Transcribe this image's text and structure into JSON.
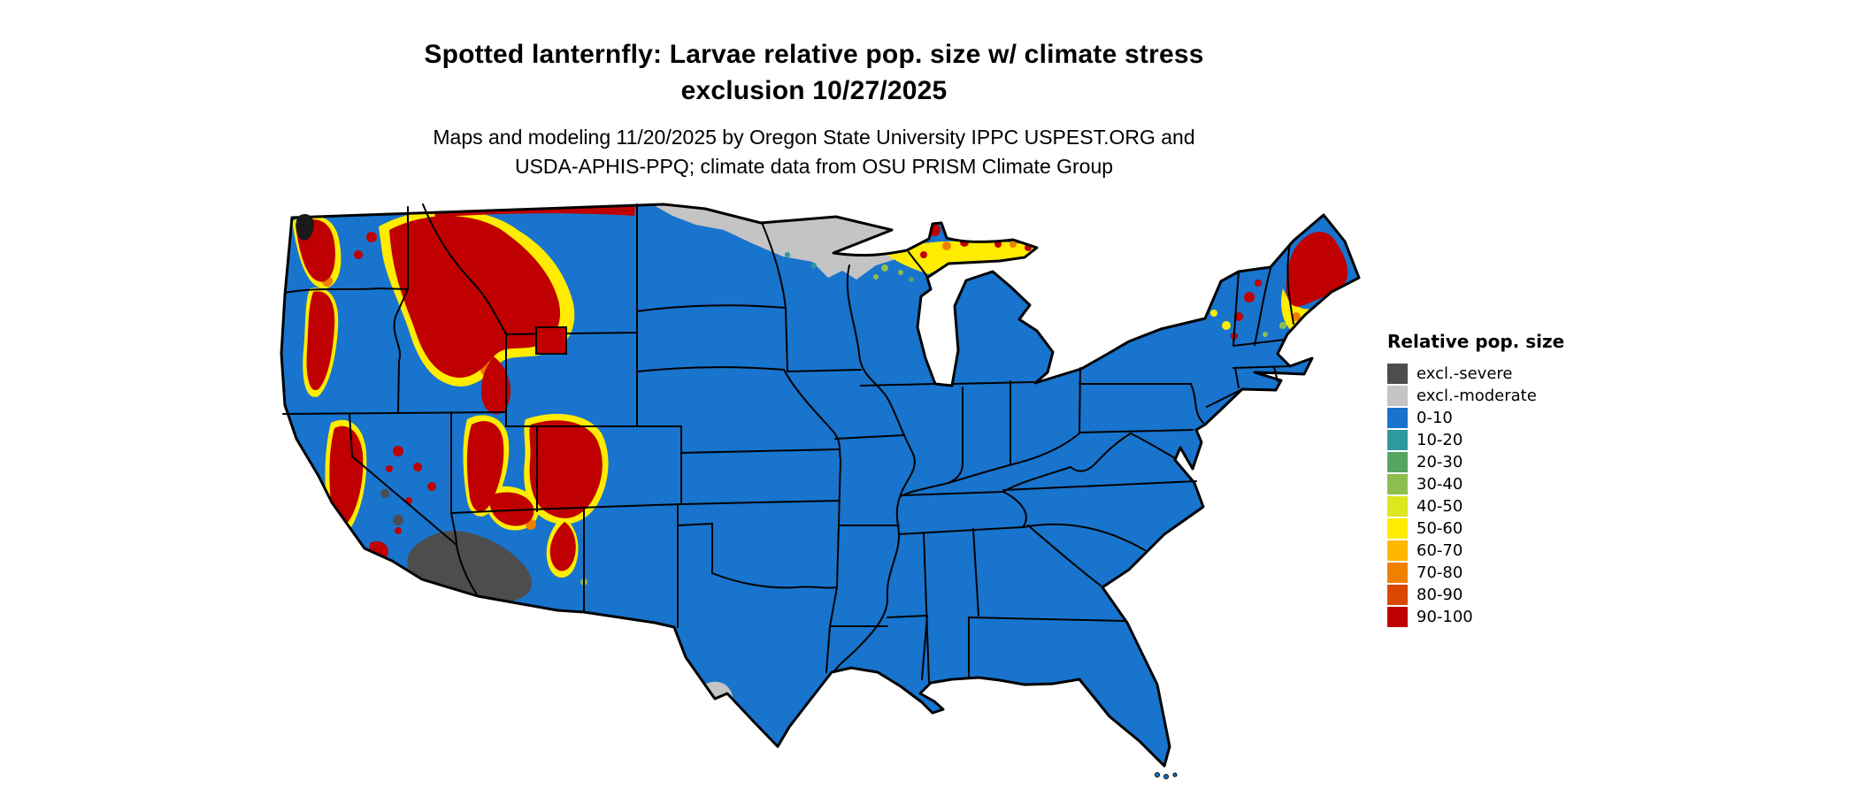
{
  "title": {
    "line1": "Spotted lanternfly: Larvae relative pop. size w/ climate stress",
    "line2": "exclusion 10/27/2025"
  },
  "subtitle": {
    "line1": "Maps and modeling 11/20/2025 by Oregon State University IPPC USPEST.ORG and",
    "line2": "USDA-APHIS-PPQ; climate data from OSU PRISM Climate Group"
  },
  "legend": {
    "title": "Relative pop. size",
    "items": [
      {
        "label": "excl.-severe",
        "color": "#4d4d4d"
      },
      {
        "label": "excl.-moderate",
        "color": "#c4c4c4"
      },
      {
        "label": "0-10",
        "color": "#1874cd"
      },
      {
        "label": "10-20",
        "color": "#2e9aa0"
      },
      {
        "label": "20-30",
        "color": "#56a462"
      },
      {
        "label": "30-40",
        "color": "#8cbd4f"
      },
      {
        "label": "40-50",
        "color": "#dbe71f"
      },
      {
        "label": "50-60",
        "color": "#ffec00"
      },
      {
        "label": "60-70",
        "color": "#ffb700"
      },
      {
        "label": "70-80",
        "color": "#f08000"
      },
      {
        "label": "80-90",
        "color": "#d94701"
      },
      {
        "label": "90-100",
        "color": "#c00000"
      }
    ]
  },
  "map": {
    "area": "Continental United States",
    "regions": [
      {
        "area": "Most of central and eastern US",
        "category": "0-10"
      },
      {
        "area": "Rocky Mountains, Cascades, Sierra Nevada, high western ranges",
        "category": "40-100 (high)"
      },
      {
        "area": "Northern Minnesota / Dakotas border strip",
        "category": "excl.-moderate"
      },
      {
        "area": "South Texas (lower Rio Grande)",
        "category": "excl.-moderate"
      },
      {
        "area": "Southern Arizona / SE California desert",
        "category": "excl.-severe"
      },
      {
        "area": "Upper Peninsula of Michigan and northern Wisconsin fringe",
        "category": "40-100 (high)"
      },
      {
        "area": "Northern New England (Maine, NH, VT, Adirondacks)",
        "category": "40-100 (high)"
      }
    ]
  }
}
